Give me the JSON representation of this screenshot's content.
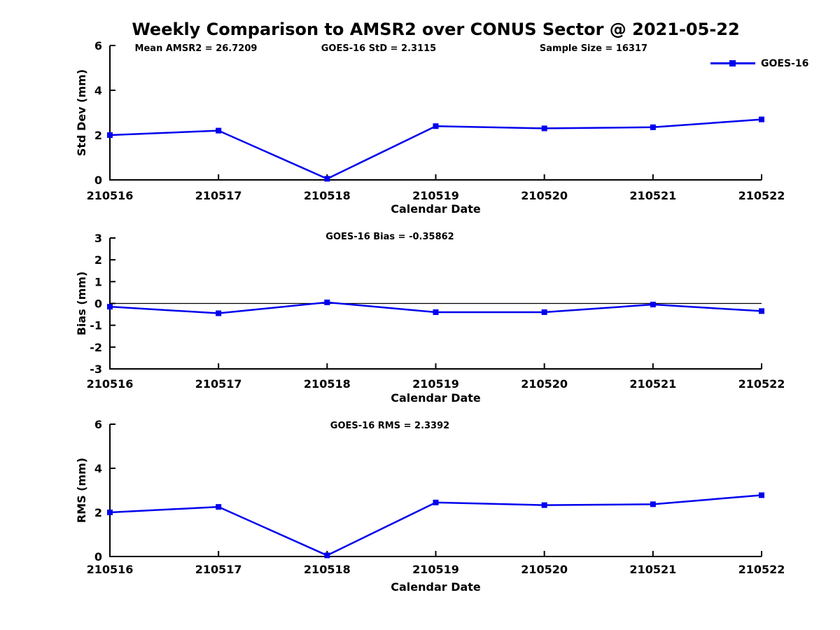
{
  "page": {
    "title": "Weekly Comparison to AMSR2 over CONUS Sector @ 2021-05-22"
  },
  "legend": {
    "label": "GOES-16"
  },
  "colors": {
    "series": "#0000ee",
    "axis": "#000000",
    "zero_line": "#000000"
  },
  "chart_data": [
    {
      "type": "line",
      "id": "stddev",
      "categories": [
        "210516",
        "210517",
        "210518",
        "210519",
        "210520",
        "210521",
        "210522"
      ],
      "series": [
        {
          "name": "GOES-16",
          "marker": "square",
          "values": [
            2.0,
            2.2,
            0.05,
            2.4,
            2.3,
            2.35,
            2.7
          ]
        }
      ],
      "xlabel": "Calendar Date",
      "ylabel": "Std Dev (mm)",
      "ylim": [
        0,
        6
      ],
      "yticks": [
        0,
        2,
        4,
        6
      ],
      "grid": false,
      "legend_position": "top-right-outside",
      "annotations": [
        "Mean AMSR2 = 26.7209",
        "GOES-16 StD = 2.3115",
        "Sample Size = 16317"
      ]
    },
    {
      "type": "line",
      "id": "bias",
      "categories": [
        "210516",
        "210517",
        "210518",
        "210519",
        "210520",
        "210521",
        "210522"
      ],
      "series": [
        {
          "name": "GOES-16",
          "marker": "square",
          "values": [
            -0.15,
            -0.45,
            0.05,
            -0.4,
            -0.4,
            -0.05,
            -0.35
          ]
        }
      ],
      "xlabel": "Calendar Date",
      "ylabel": "Bias (mm)",
      "ylim": [
        -3,
        3
      ],
      "yticks": [
        -3,
        -2,
        -1,
        0,
        1,
        2,
        3
      ],
      "grid": false,
      "zero_line": true,
      "annotations": [
        "GOES-16 Bias  = -0.35862"
      ]
    },
    {
      "type": "line",
      "id": "rms",
      "categories": [
        "210516",
        "210517",
        "210518",
        "210519",
        "210520",
        "210521",
        "210522"
      ],
      "series": [
        {
          "name": "GOES-16",
          "marker": "square",
          "values": [
            2.0,
            2.25,
            0.05,
            2.45,
            2.33,
            2.37,
            2.78
          ]
        }
      ],
      "xlabel": "Calendar Date",
      "ylabel": "RMS (mm)",
      "ylim": [
        0,
        6
      ],
      "yticks": [
        0,
        2,
        4,
        6
      ],
      "grid": false,
      "annotations": [
        "GOES-16 RMS = 2.3392"
      ]
    }
  ]
}
